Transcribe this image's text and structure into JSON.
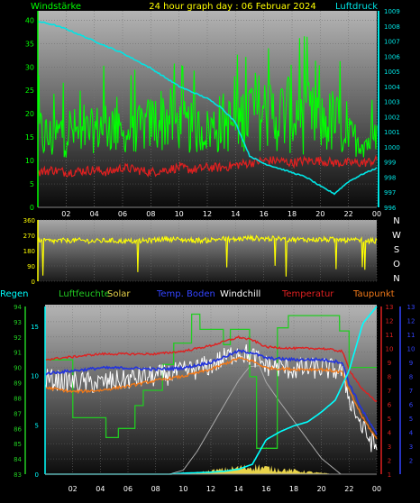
{
  "header": {
    "left": "Windstärke",
    "center": "24 hour graph day : 06 Februar 2024",
    "right": "Luftdruck"
  },
  "colors": {
    "bg": "#000000",
    "wind": "#00ff00",
    "gust": "#00ff00",
    "pressure": "#00e5e5",
    "winddir": "#ffff00",
    "temp": "#e02020",
    "dew": "#f07818",
    "humidity": "#22cc22",
    "solar": "#e8d34a",
    "soil": "#2233dd",
    "windchill": "#ffffff",
    "rain": "#00ffff",
    "plot_top": "#b0b0b0",
    "plot_bottom": "#000000"
  },
  "chart_data": [
    {
      "type": "line",
      "name": "wind-pressure",
      "x_ticks": [
        "02",
        "04",
        "06",
        "08",
        "10",
        "12",
        "14",
        "16",
        "18",
        "20",
        "22",
        "00"
      ],
      "y_left": {
        "label": "Windstärke",
        "ticks": [
          "0",
          "5",
          "10",
          "15",
          "20",
          "25",
          "30",
          "35",
          "40"
        ],
        "ylim": [
          0,
          42
        ]
      },
      "y_right": {
        "label": "Luftdruck",
        "ticks": [
          "996",
          "997",
          "998",
          "999",
          "1000",
          "1001",
          "1002",
          "1003",
          "1004",
          "1005",
          "1006",
          "1007",
          "1008",
          "1009"
        ],
        "ylim": [
          996,
          1009
        ]
      },
      "series": [
        {
          "role": "gust",
          "axis": "left",
          "x": [
            0,
            1,
            2,
            3,
            4,
            5,
            6,
            7,
            8,
            9,
            10,
            11,
            12,
            13,
            14,
            15,
            16,
            17,
            18,
            19,
            20,
            21,
            22,
            23,
            24
          ],
          "values": [
            23,
            20,
            24,
            21,
            22,
            26,
            19,
            22,
            25,
            28,
            24,
            23,
            22,
            26,
            24,
            31,
            30,
            28,
            32,
            29,
            25,
            27,
            20,
            18,
            19
          ]
        },
        {
          "role": "wind",
          "axis": "left",
          "x": [
            0,
            1,
            2,
            3,
            4,
            5,
            6,
            7,
            8,
            9,
            10,
            11,
            12,
            13,
            14,
            15,
            16,
            17,
            18,
            19,
            20,
            21,
            22,
            23,
            24
          ],
          "values": [
            14,
            13,
            15,
            14,
            15,
            16,
            14,
            15,
            16,
            17,
            16,
            15,
            15,
            16,
            16,
            18,
            18,
            17,
            18,
            17,
            16,
            16,
            14,
            13,
            13
          ]
        },
        {
          "role": "avg",
          "axis": "left",
          "x": [
            0,
            1,
            2,
            3,
            4,
            5,
            6,
            7,
            8,
            9,
            10,
            11,
            12,
            13,
            14,
            15,
            16,
            17,
            18,
            19,
            20,
            21,
            22,
            23,
            24
          ],
          "values": [
            7.5,
            8,
            7.5,
            7.8,
            8,
            7.5,
            8.5,
            8,
            7.5,
            8,
            8.5,
            8,
            8.5,
            8.5,
            9,
            9.5,
            10,
            10,
            9.5,
            10,
            10,
            9.5,
            9.5,
            9.5,
            10
          ]
        },
        {
          "role": "pressure",
          "axis": "right",
          "x": [
            0,
            1,
            2,
            3,
            4,
            5,
            6,
            7,
            8,
            9,
            10,
            11,
            12,
            13,
            14,
            15,
            16,
            17,
            18,
            19,
            20,
            21,
            22,
            23,
            24
          ],
          "values": [
            1008.3,
            1008.1,
            1007.8,
            1007.4,
            1007.0,
            1006.6,
            1006.2,
            1005.7,
            1005.2,
            1004.6,
            1004.0,
            1003.6,
            1003.2,
            1002.6,
            1001.6,
            999.4,
            998.9,
            998.6,
            998.3,
            998.0,
            997.4,
            996.9,
            997.7,
            998.2,
            998.6
          ]
        }
      ]
    },
    {
      "type": "line",
      "name": "wind-direction",
      "x_ticks": [],
      "y_left": {
        "ticks": [
          "0",
          "90",
          "180",
          "270",
          "360"
        ],
        "ylim": [
          0,
          360
        ]
      },
      "y_right": {
        "ticks": [
          "N",
          "W",
          "S",
          "O",
          "N"
        ]
      },
      "series": [
        {
          "role": "winddir",
          "x": [
            0,
            1,
            2,
            3,
            4,
            5,
            6,
            7,
            8,
            9,
            10,
            11,
            12,
            13,
            14,
            15,
            16,
            17,
            18,
            19,
            20,
            21,
            22,
            23,
            24
          ],
          "values": [
            245,
            235,
            240,
            240,
            235,
            240,
            235,
            235,
            240,
            250,
            245,
            240,
            240,
            250,
            245,
            255,
            250,
            250,
            245,
            245,
            245,
            245,
            240,
            240,
            235
          ]
        }
      ]
    },
    {
      "type": "line",
      "name": "multi-sensor",
      "legend": [
        "Regen",
        "Luftfeuchte",
        "Solar",
        "Temp. Boden",
        "Windchill",
        "Temperatur",
        "Taupunkt"
      ],
      "x_ticks": [
        "02",
        "04",
        "06",
        "08",
        "10",
        "12",
        "14",
        "16",
        "18",
        "20",
        "22",
        "00"
      ],
      "y_rain": {
        "ticks": [
          "0",
          "5",
          "10",
          "15"
        ],
        "ylim": [
          0,
          17
        ]
      },
      "y_humidity": {
        "ticks": [
          "83",
          "84",
          "85",
          "86",
          "87",
          "88",
          "89",
          "90",
          "91",
          "92",
          "93",
          "94"
        ],
        "ylim": [
          83,
          94
        ]
      },
      "y_temp": {
        "ticks": [
          "1",
          "2",
          "3",
          "4",
          "5",
          "6",
          "7",
          "8",
          "9",
          "10",
          "11",
          "12",
          "13"
        ],
        "ylim": [
          1,
          13
        ]
      },
      "y_right": {
        "ticks": [
          "2",
          "3",
          "4",
          "5",
          "6",
          "7",
          "8",
          "9",
          "10",
          "11",
          "12",
          "13"
        ]
      },
      "series": [
        {
          "name": "Luftfeuchte",
          "axis": "humidity",
          "x": [
            0,
            1,
            2,
            2.01,
            3,
            4.4,
            4.41,
            5.3,
            5.31,
            6.5,
            6.51,
            7.1,
            7.11,
            8.5,
            8.51,
            9.3,
            9.31,
            10.6,
            10.61,
            11.2,
            11.21,
            12.9,
            12.91,
            13.4,
            13.41,
            14.8,
            14.81,
            15.3,
            15.31,
            16.8,
            16.81,
            17.6,
            17.61,
            21.3,
            21.31,
            22.0,
            22.01,
            24
          ],
          "values": [
            90.5,
            90.5,
            90.5,
            86.7,
            86.7,
            86.7,
            85.4,
            85.4,
            86.0,
            86.0,
            87.5,
            87.5,
            88.5,
            88.5,
            90.2,
            90.2,
            91.6,
            91.6,
            93.5,
            93.5,
            92.5,
            92.5,
            91.5,
            91.5,
            92.5,
            92.5,
            89.4,
            89.4,
            84.7,
            84.7,
            92.6,
            92.6,
            93.4,
            93.4,
            92.4,
            92.4,
            90.0,
            90.0
          ]
        },
        {
          "name": "Temperatur",
          "axis": "temp",
          "x": [
            0,
            2,
            4,
            6,
            8,
            10,
            12,
            14,
            15,
            16,
            18,
            20,
            21.5,
            22,
            23,
            24
          ],
          "values": [
            9.2,
            9.4,
            9.6,
            9.6,
            9.6,
            9.8,
            10.2,
            10.8,
            10.6,
            10.1,
            10.0,
            10.0,
            9.8,
            8.5,
            7.0,
            6.2
          ]
        },
        {
          "name": "Temp. Boden",
          "axis": "temp",
          "x": [
            0,
            2,
            4,
            6,
            8,
            10,
            12,
            14,
            15,
            16,
            18,
            20,
            21.5,
            22,
            23,
            24
          ],
          "values": [
            8.2,
            8.4,
            8.6,
            8.6,
            8.5,
            8.6,
            9.0,
            9.8,
            9.7,
            9.3,
            9.2,
            9.2,
            9.0,
            7.5,
            5.5,
            3.8
          ]
        },
        {
          "name": "Taupunkt",
          "axis": "temp",
          "x": [
            0,
            2,
            4,
            6,
            8,
            10,
            12,
            14,
            15,
            16,
            18,
            20,
            21.5,
            22,
            23,
            24
          ],
          "values": [
            7.2,
            6.9,
            7.0,
            7.3,
            7.7,
            8.0,
            8.5,
            9.3,
            9.1,
            8.6,
            8.5,
            8.5,
            8.3,
            7.0,
            5.0,
            3.5
          ]
        },
        {
          "name": "Windchill",
          "axis": "temp",
          "x": [
            0,
            2,
            4,
            6,
            8,
            10,
            12,
            14,
            15,
            16,
            18,
            20,
            21.5,
            22,
            23,
            24
          ],
          "values": [
            7.8,
            7.6,
            7.5,
            7.8,
            8.0,
            8.3,
            8.8,
            9.8,
            9.4,
            8.8,
            8.5,
            8.6,
            8.4,
            6.5,
            4.2,
            2.8
          ]
        },
        {
          "name": "Solar",
          "axis": "rain",
          "x": [
            9,
            10,
            11,
            12,
            13,
            14,
            14.8,
            15.5,
            16,
            17,
            18,
            19,
            20,
            21.4
          ],
          "values": [
            0,
            0.4,
            2.3,
            4.7,
            7.1,
            9.5,
            10.9,
            11.0,
            9.3,
            7.3,
            5.4,
            3.5,
            1.6,
            0
          ]
        },
        {
          "name": "Regen",
          "axis": "rain",
          "x": [
            0,
            9,
            10,
            11,
            12,
            13,
            14,
            15,
            16,
            17,
            18,
            19,
            20,
            21,
            22,
            23,
            24
          ],
          "values": [
            0,
            0,
            0.1,
            0.15,
            0.2,
            0.3,
            0.5,
            1.0,
            3.5,
            4.3,
            4.9,
            5.3,
            6.3,
            7.5,
            10.5,
            15.3,
            17
          ]
        }
      ]
    }
  ]
}
